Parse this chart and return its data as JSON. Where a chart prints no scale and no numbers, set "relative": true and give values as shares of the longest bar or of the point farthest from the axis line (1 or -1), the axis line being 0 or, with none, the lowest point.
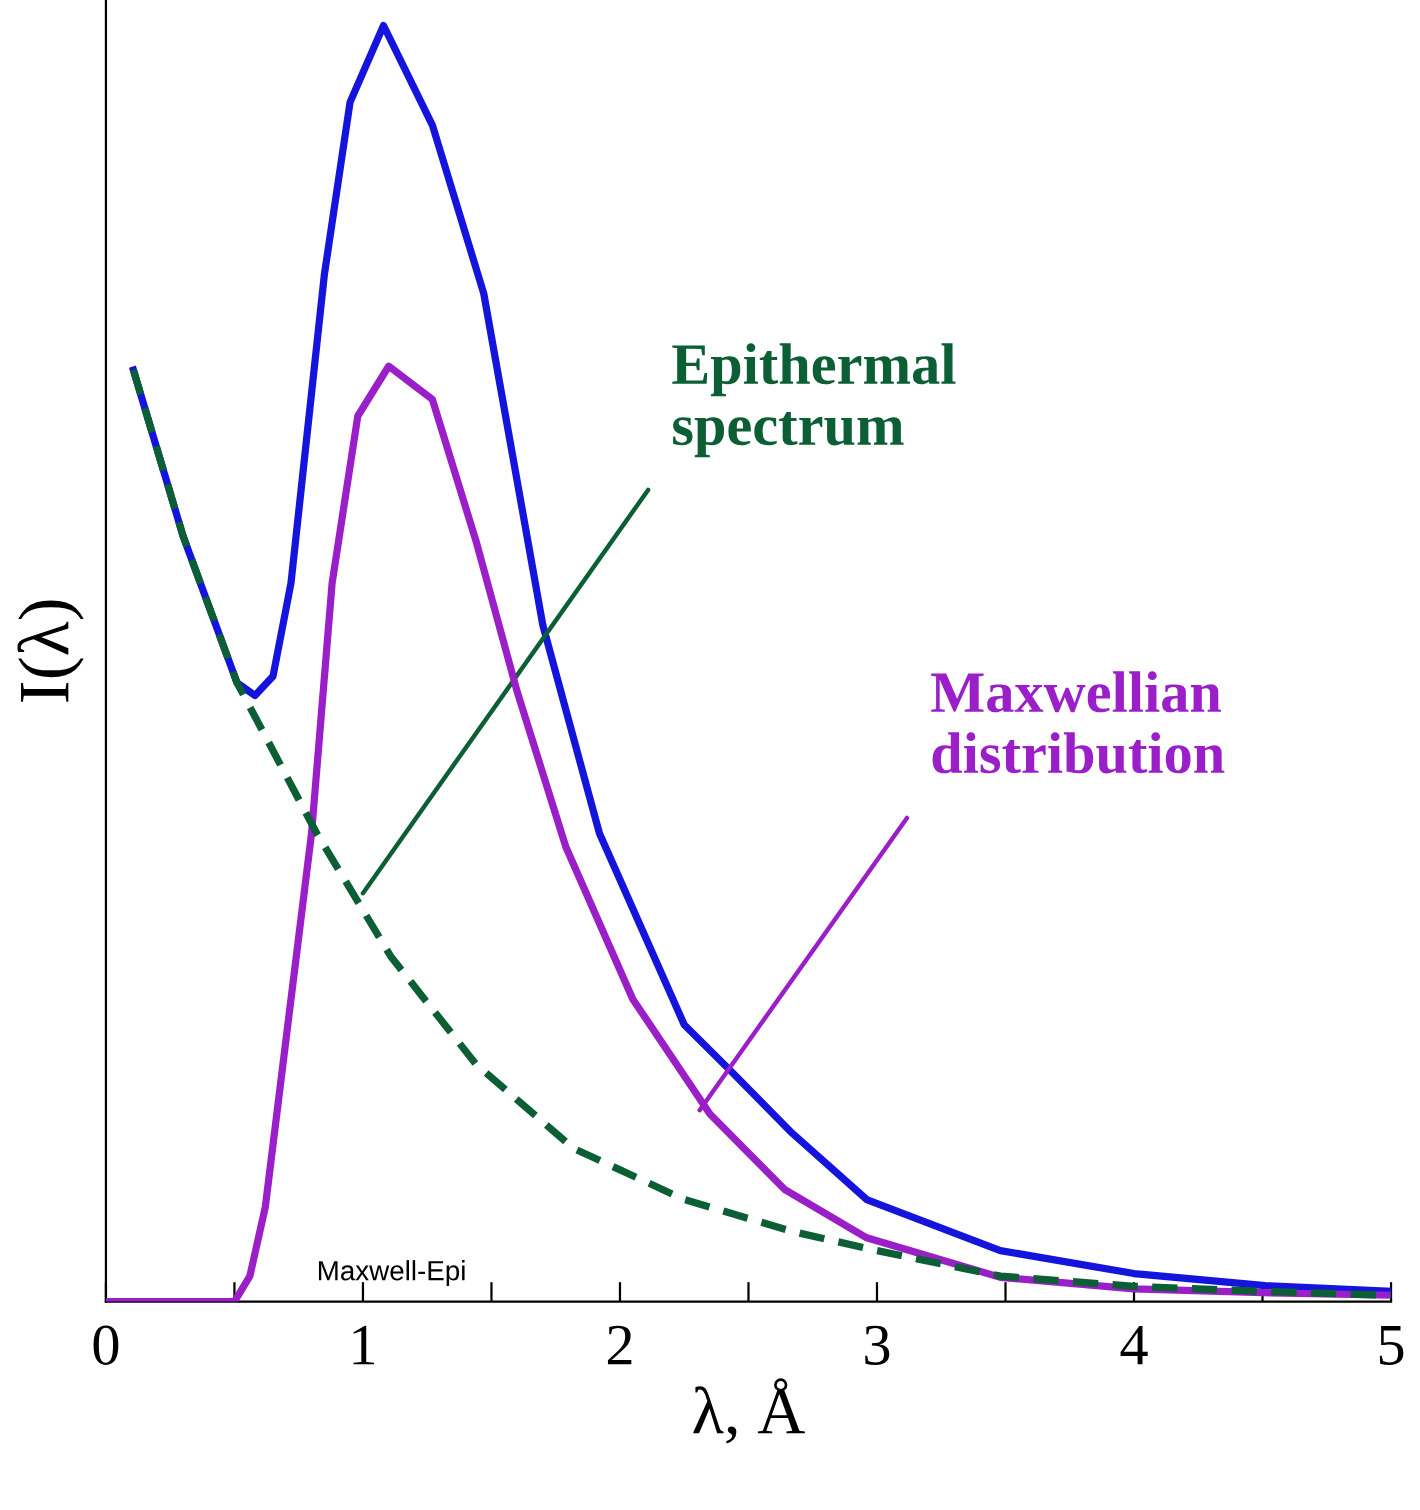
{
  "chart_data": {
    "type": "line",
    "relative": true,
    "xlabel": "λ, Å",
    "ylabel": "I(λ)",
    "xlim": [
      0,
      5
    ],
    "xticks": [
      0,
      {
        "value": 0.5,
        "label": null
      },
      1,
      {
        "value": 1.5,
        "label": null
      },
      2,
      {
        "value": 2.5,
        "label": null
      },
      3,
      {
        "value": 3.5,
        "label": null
      },
      4,
      {
        "value": 4.5,
        "label": null
      },
      5
    ],
    "grid": false,
    "legend": false,
    "marker": "none",
    "series": [
      {
        "color": "#1414dc",
        "line_style": "solid",
        "x": [
          0.107,
          0.3,
          0.51,
          0.58,
          0.65,
          0.72,
          0.85,
          0.95,
          1.08,
          1.27,
          1.47,
          1.7,
          1.92,
          2.25,
          2.44,
          2.67,
          2.96,
          3.48,
          4.0,
          4.51,
          5.0
        ],
        "values": [
          0.73,
          0.6,
          0.485,
          0.475,
          0.49,
          0.563,
          0.805,
          0.94,
          1.0,
          0.922,
          0.79,
          0.53,
          0.367,
          0.217,
          0.179,
          0.132,
          0.08,
          0.04,
          0.022,
          0.0125,
          0.008
        ]
      },
      {
        "color": "#9b1fc8",
        "line_style": "solid",
        "x": [
          0.0,
          0.25,
          0.5,
          0.56,
          0.62,
          0.72,
          0.8,
          0.88,
          0.98,
          1.1,
          1.27,
          1.44,
          1.6,
          1.79,
          2.05,
          2.35,
          2.64,
          2.96,
          3.48,
          4.0,
          4.5,
          5.0
        ],
        "values": [
          0,
          0,
          0,
          0.02,
          0.074,
          0.237,
          0.367,
          0.563,
          0.694,
          0.733,
          0.707,
          0.596,
          0.478,
          0.356,
          0.237,
          0.147,
          0.088,
          0.05,
          0.019,
          0.01,
          0.007,
          0.005
        ]
      },
      {
        "color": "#0c5e34",
        "line_style": "dashed",
        "x": [
          0.107,
          0.3,
          0.51,
          0.82,
          1.11,
          1.44,
          1.82,
          2.25,
          2.67,
          3.0,
          3.48,
          4.0,
          4.5,
          5.0
        ],
        "values": [
          0.73,
          0.6,
          0.485,
          0.367,
          0.27,
          0.186,
          0.12,
          0.08,
          0.055,
          0.04,
          0.02,
          0.012,
          0.008,
          0.005
        ]
      }
    ],
    "annotations": [
      {
        "text": "Epithermal\nspectrum",
        "x": 1.0,
        "y": 0.32
      },
      {
        "text": "Maxwellian\ndistribution",
        "x": 2.31,
        "y": 0.15
      },
      "Maxwell-Epi"
    ]
  }
}
